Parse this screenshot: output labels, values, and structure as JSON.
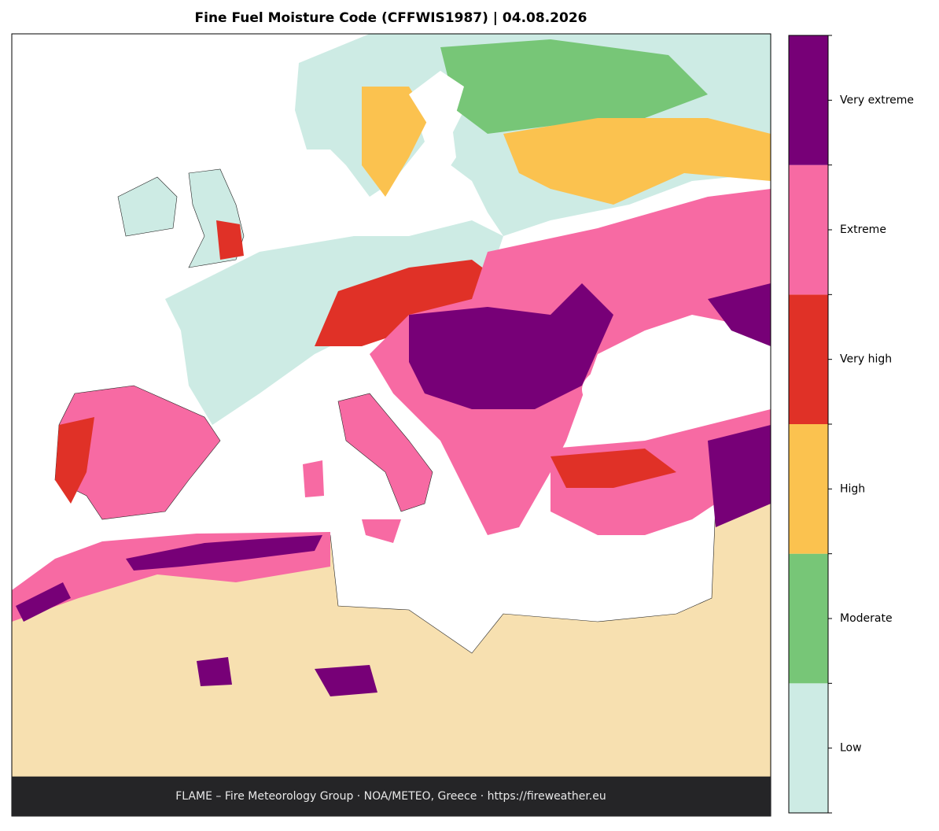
{
  "title": "Fine Fuel Moisture Code (CFFWIS1987)  |  04.08.2026",
  "legend": {
    "levels": [
      {
        "label": "Low",
        "color": "#cdebe4"
      },
      {
        "label": "Moderate",
        "color": "#77c677"
      },
      {
        "label": "High",
        "color": "#fbc24f"
      },
      {
        "label": "Very high",
        "color": "#e03127"
      },
      {
        "label": "Extreme",
        "color": "#f76aa3"
      },
      {
        "label": "Very extreme",
        "color": "#770077"
      }
    ]
  },
  "footer": "FLAME – Fire Meteorology Group · NOA/METEO, Greece · https://fireweather.eu"
}
